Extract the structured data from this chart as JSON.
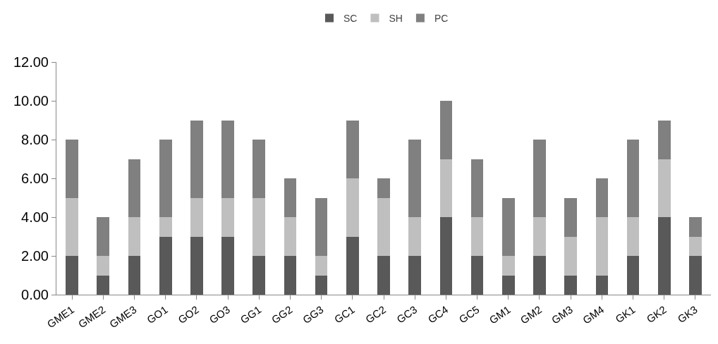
{
  "chart_data": {
    "type": "bar",
    "stacked": true,
    "legend": "top",
    "grid": false,
    "categories": [
      "GME1",
      "GME2",
      "GME3",
      "GO1",
      "GO2",
      "GO3",
      "GG1",
      "GG2",
      "GG3",
      "GC1",
      "GC2",
      "GC3",
      "GC4",
      "GC5",
      "GM1",
      "GM2",
      "GM3",
      "GM4",
      "GK1",
      "GK2",
      "GK3"
    ],
    "series": [
      {
        "name": "SC",
        "color": "#595959",
        "values": [
          2,
          1,
          2,
          3,
          3,
          3,
          2,
          2,
          1,
          3,
          2,
          2,
          4,
          2,
          1,
          2,
          1,
          1,
          2,
          4,
          2
        ]
      },
      {
        "name": "SH",
        "color": "#bfbfbf",
        "values": [
          3,
          1,
          2,
          1,
          2,
          2,
          3,
          2,
          1,
          3,
          3,
          2,
          3,
          2,
          1,
          2,
          2,
          3,
          2,
          3,
          1
        ]
      },
      {
        "name": "PC",
        "color": "#808080",
        "values": [
          3,
          2,
          3,
          4,
          4,
          4,
          3,
          2,
          3,
          3,
          1,
          4,
          3,
          3,
          3,
          4,
          2,
          2,
          4,
          2,
          1
        ]
      }
    ],
    "ylim": [
      0,
      12
    ],
    "yticks": [
      {
        "value": 0,
        "label": "0.00"
      },
      {
        "value": 2,
        "label": "2.00"
      },
      {
        "value": 4,
        "label": "4.00"
      },
      {
        "value": 6,
        "label": "6.00"
      },
      {
        "value": 8,
        "label": "8.00"
      },
      {
        "value": 10,
        "label": "10.00"
      },
      {
        "value": 12,
        "label": "12.00"
      }
    ]
  }
}
